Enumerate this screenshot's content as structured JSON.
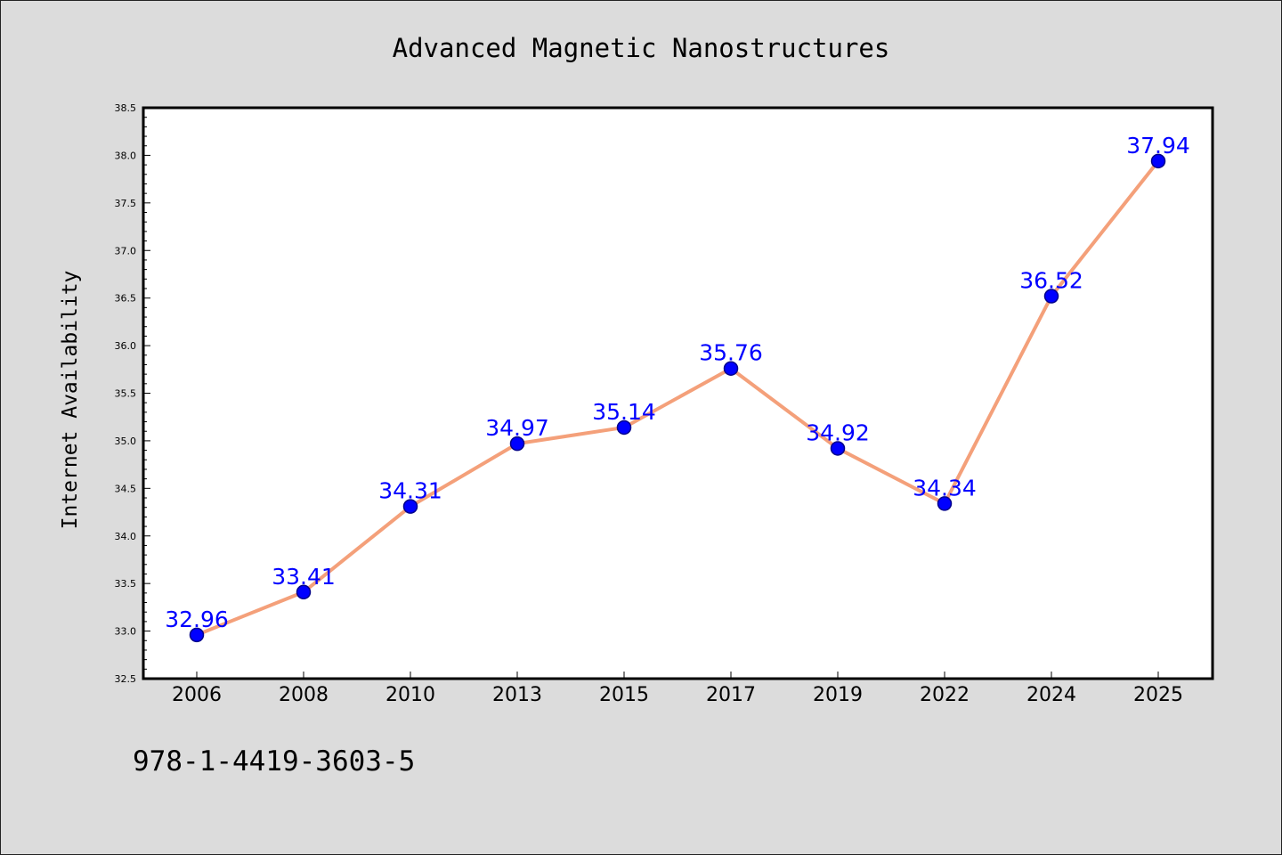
{
  "title": "Advanced Magnetic Nanostructures",
  "footer_code": "978-1-4419-3603-5",
  "colors": {
    "line": "#f4a07a",
    "marker": "#0000ff",
    "marker_edge": "#00008b",
    "label": "#0000ff",
    "background": "#dcdcdc",
    "plot_area": "#ffffff"
  },
  "chart_data": {
    "type": "line",
    "title": "Advanced Magnetic Nanostructures",
    "xlabel": "",
    "ylabel": "Internet Availability",
    "categories": [
      "2006",
      "2008",
      "2010",
      "2013",
      "2015",
      "2017",
      "2019",
      "2022",
      "2024",
      "2025"
    ],
    "series": [
      {
        "values": [
          32.96,
          33.41,
          34.31,
          34.97,
          35.14,
          35.76,
          34.92,
          34.34,
          36.52,
          37.94
        ]
      }
    ],
    "data_labels": [
      "32.96",
      "33.41",
      "34.31",
      "34.97",
      "35.14",
      "35.76",
      "34.92",
      "34.34",
      "36.52",
      "37.94"
    ],
    "ylim": [
      32.5,
      38.5
    ],
    "yticks": [
      "32.5",
      "33.0",
      "33.5",
      "34.0",
      "34.5",
      "35.0",
      "35.5",
      "36.0",
      "36.5",
      "37.0",
      "37.5",
      "38.0",
      "38.5"
    ],
    "grid": false,
    "legend": "none"
  }
}
